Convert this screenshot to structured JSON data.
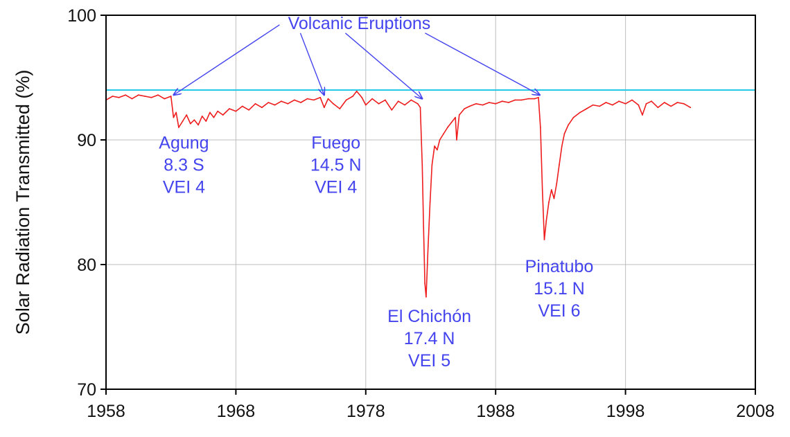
{
  "chart_data": {
    "type": "line",
    "title": "",
    "xlabel": "",
    "ylabel": "Solar Radiation Transmitted (%)",
    "xlim": [
      1958,
      2008
    ],
    "ylim": [
      70,
      100
    ],
    "x_ticks": [
      1958,
      1968,
      1978,
      1988,
      1998,
      2008
    ],
    "y_ticks": [
      70,
      80,
      90,
      100
    ],
    "x_tick_labels": [
      "1958",
      "1968",
      "1978",
      "1988",
      "1998",
      "2008"
    ],
    "y_tick_labels": [
      "70",
      "80",
      "90",
      "100"
    ],
    "grid": true,
    "legend": "none",
    "reference_line": {
      "y": 94,
      "color": "#22c8e6"
    },
    "series": [
      {
        "color": "#ee1c1c",
        "points": [
          [
            1958.0,
            93.2
          ],
          [
            1958.5,
            93.5
          ],
          [
            1959.0,
            93.4
          ],
          [
            1959.5,
            93.6
          ],
          [
            1960.0,
            93.3
          ],
          [
            1960.5,
            93.6
          ],
          [
            1961.0,
            93.5
          ],
          [
            1961.5,
            93.4
          ],
          [
            1962.0,
            93.6
          ],
          [
            1962.5,
            93.3
          ],
          [
            1963.0,
            93.5
          ],
          [
            1963.2,
            91.8
          ],
          [
            1963.4,
            92.2
          ],
          [
            1963.6,
            91.0
          ],
          [
            1963.9,
            91.5
          ],
          [
            1964.2,
            92.0
          ],
          [
            1964.5,
            91.3
          ],
          [
            1964.8,
            91.6
          ],
          [
            1965.1,
            91.2
          ],
          [
            1965.4,
            91.9
          ],
          [
            1965.7,
            91.5
          ],
          [
            1966.0,
            92.2
          ],
          [
            1966.3,
            91.8
          ],
          [
            1966.6,
            92.3
          ],
          [
            1967.0,
            92.0
          ],
          [
            1967.5,
            92.5
          ],
          [
            1968.0,
            92.3
          ],
          [
            1968.5,
            92.7
          ],
          [
            1969.0,
            92.4
          ],
          [
            1969.5,
            92.9
          ],
          [
            1970.0,
            92.6
          ],
          [
            1970.5,
            93.0
          ],
          [
            1971.0,
            92.8
          ],
          [
            1971.5,
            93.1
          ],
          [
            1972.0,
            92.9
          ],
          [
            1972.5,
            93.2
          ],
          [
            1973.0,
            93.0
          ],
          [
            1973.5,
            93.3
          ],
          [
            1974.0,
            93.2
          ],
          [
            1974.5,
            93.4
          ],
          [
            1974.8,
            92.6
          ],
          [
            1975.1,
            93.3
          ],
          [
            1975.5,
            92.9
          ],
          [
            1976.0,
            92.5
          ],
          [
            1976.5,
            93.2
          ],
          [
            1977.0,
            93.5
          ],
          [
            1977.3,
            93.9
          ],
          [
            1977.7,
            93.4
          ],
          [
            1978.0,
            92.8
          ],
          [
            1978.5,
            93.3
          ],
          [
            1979.0,
            92.9
          ],
          [
            1979.5,
            93.2
          ],
          [
            1980.0,
            92.4
          ],
          [
            1980.5,
            93.1
          ],
          [
            1981.0,
            92.8
          ],
          [
            1981.5,
            93.2
          ],
          [
            1982.0,
            92.9
          ],
          [
            1982.2,
            92.6
          ],
          [
            1982.35,
            88.0
          ],
          [
            1982.45,
            83.0
          ],
          [
            1982.55,
            78.5
          ],
          [
            1982.65,
            77.4
          ],
          [
            1982.8,
            81.5
          ],
          [
            1982.95,
            85.0
          ],
          [
            1983.1,
            88.0
          ],
          [
            1983.3,
            89.5
          ],
          [
            1983.5,
            89.2
          ],
          [
            1983.7,
            90.0
          ],
          [
            1984.0,
            90.5
          ],
          [
            1984.3,
            91.0
          ],
          [
            1984.6,
            91.4
          ],
          [
            1984.9,
            91.8
          ],
          [
            1985.0,
            90.0
          ],
          [
            1985.2,
            92.0
          ],
          [
            1985.6,
            92.5
          ],
          [
            1986.0,
            92.7
          ],
          [
            1986.5,
            92.9
          ],
          [
            1987.0,
            92.8
          ],
          [
            1987.5,
            93.0
          ],
          [
            1988.0,
            92.9
          ],
          [
            1988.5,
            93.1
          ],
          [
            1989.0,
            93.0
          ],
          [
            1989.5,
            93.2
          ],
          [
            1990.0,
            93.2
          ],
          [
            1990.5,
            93.3
          ],
          [
            1991.0,
            93.3
          ],
          [
            1991.3,
            93.4
          ],
          [
            1991.45,
            91.0
          ],
          [
            1991.6,
            86.0
          ],
          [
            1991.75,
            82.0
          ],
          [
            1991.9,
            83.5
          ],
          [
            1992.1,
            85.0
          ],
          [
            1992.3,
            86.0
          ],
          [
            1992.5,
            85.3
          ],
          [
            1992.7,
            86.5
          ],
          [
            1992.9,
            88.0
          ],
          [
            1993.1,
            89.5
          ],
          [
            1993.3,
            90.5
          ],
          [
            1993.6,
            91.2
          ],
          [
            1994.0,
            91.8
          ],
          [
            1994.5,
            92.2
          ],
          [
            1995.0,
            92.5
          ],
          [
            1995.5,
            92.8
          ],
          [
            1996.0,
            92.7
          ],
          [
            1996.5,
            93.0
          ],
          [
            1997.0,
            92.8
          ],
          [
            1997.5,
            93.1
          ],
          [
            1998.0,
            92.9
          ],
          [
            1998.5,
            93.2
          ],
          [
            1999.0,
            92.8
          ],
          [
            1999.3,
            92.0
          ],
          [
            1999.6,
            92.9
          ],
          [
            2000.0,
            93.1
          ],
          [
            2000.5,
            92.6
          ],
          [
            2001.0,
            93.0
          ],
          [
            2001.5,
            92.7
          ],
          [
            2002.0,
            93.0
          ],
          [
            2002.5,
            92.9
          ],
          [
            2003.0,
            92.6
          ]
        ]
      }
    ],
    "annotations": {
      "color": "#4444ee",
      "header": "Volcanic Eruptions",
      "header_position": [
        1977.5,
        98.9
      ],
      "eruptions": [
        {
          "name": "Agung",
          "lat": "8.3 S",
          "vei": "VEI  4",
          "event": [
            1963.2,
            93.6
          ],
          "label_position": [
            1964.0,
            89.3
          ]
        },
        {
          "name": "Fuego",
          "lat": "14.5 N",
          "vei": "VEI  4",
          "event": [
            1974.8,
            93.6
          ],
          "label_position": [
            1975.7,
            89.3
          ]
        },
        {
          "name": "El Chichón",
          "lat": "17.4 N",
          "vei": "VEI  5",
          "event": [
            1982.35,
            93.3
          ],
          "label_position": [
            1982.9,
            75.4
          ]
        },
        {
          "name": "Pinatubo",
          "lat": "15.1 N",
          "vei": "VEI  6",
          "event": [
            1991.4,
            93.6
          ],
          "label_position": [
            1992.9,
            79.4
          ]
        }
      ]
    }
  }
}
